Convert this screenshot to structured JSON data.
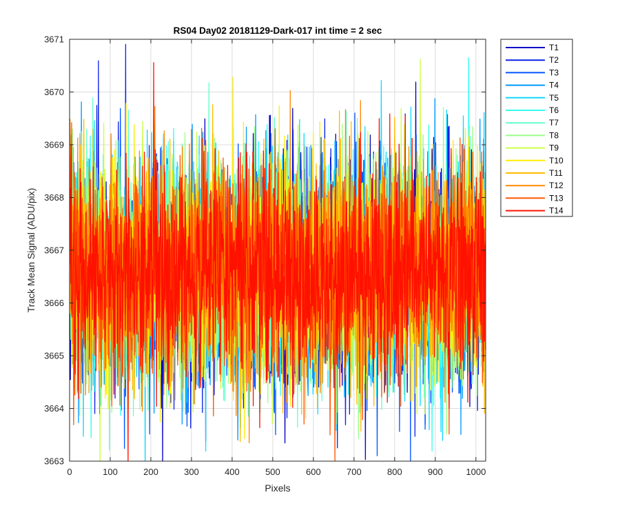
{
  "chart_data": {
    "type": "line",
    "title": "RS04 Day02 20181129-Dark-017 int time = 2 sec",
    "xlabel": "Pixels",
    "ylabel": "Track Mean Signal (ADU/pix)",
    "xlim": [
      0,
      1024
    ],
    "ylim": [
      3663,
      3671
    ],
    "xticks": [
      "0",
      "100",
      "200",
      "300",
      "400",
      "500",
      "600",
      "700",
      "800",
      "900",
      "1000"
    ],
    "xtick_values": [
      0,
      100,
      200,
      300,
      400,
      500,
      600,
      700,
      800,
      900,
      1000
    ],
    "yticks": [
      "3663",
      "3664",
      "3665",
      "3666",
      "3667",
      "3668",
      "3669",
      "3670",
      "3671"
    ],
    "ytick_values": [
      3663,
      3664,
      3665,
      3666,
      3667,
      3668,
      3669,
      3670,
      3671
    ],
    "grid": true,
    "legend_position": "outside-top-right",
    "n_points_per_series": 1024,
    "series": [
      {
        "name": "T1",
        "color": "#0000c4",
        "mean": 3666.6,
        "std": 1.05,
        "seed": 11
      },
      {
        "name": "T2",
        "color": "#0a20e6",
        "mean": 3666.6,
        "std": 1.05,
        "seed": 23
      },
      {
        "name": "T3",
        "color": "#0055ff",
        "mean": 3666.6,
        "std": 1.05,
        "seed": 37
      },
      {
        "name": "T4",
        "color": "#0099ff",
        "mean": 3666.6,
        "std": 1.05,
        "seed": 41
      },
      {
        "name": "T5",
        "color": "#10d8ff",
        "mean": 3666.6,
        "std": 1.05,
        "seed": 53
      },
      {
        "name": "T6",
        "color": "#33ffee",
        "mean": 3666.6,
        "std": 1.05,
        "seed": 67
      },
      {
        "name": "T7",
        "color": "#66ffcc",
        "mean": 3666.6,
        "std": 1.05,
        "seed": 71
      },
      {
        "name": "T8",
        "color": "#99ff88",
        "mean": 3666.6,
        "std": 1.05,
        "seed": 83
      },
      {
        "name": "T9",
        "color": "#ccff44",
        "mean": 3666.6,
        "std": 1.05,
        "seed": 97
      },
      {
        "name": "T10",
        "color": "#ffee00",
        "mean": 3666.6,
        "std": 1.05,
        "seed": 101
      },
      {
        "name": "T11",
        "color": "#ffbb00",
        "mean": 3666.6,
        "std": 1.05,
        "seed": 113
      },
      {
        "name": "T12",
        "color": "#ff8800",
        "mean": 3666.6,
        "std": 1.05,
        "seed": 127
      },
      {
        "name": "T13",
        "color": "#ff5500",
        "mean": 3666.6,
        "std": 1.05,
        "seed": 131
      },
      {
        "name": "T14",
        "color": "#ff1100",
        "mean": 3666.6,
        "std": 1.05,
        "seed": 149
      }
    ]
  }
}
